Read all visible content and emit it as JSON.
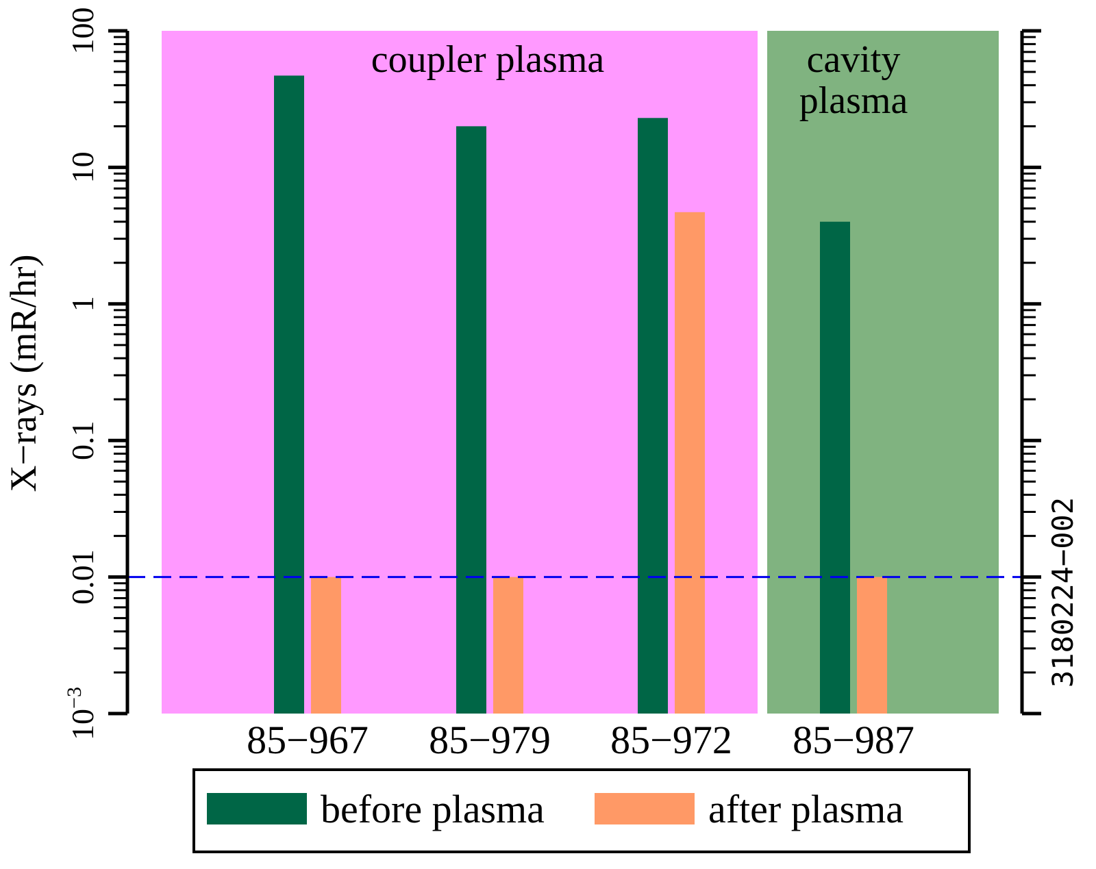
{
  "chart_data": {
    "type": "bar",
    "ylabel": "X−rays (mR/hr)",
    "yscale": "log",
    "ylim": [
      0.001,
      100
    ],
    "yticks": [
      {
        "value": 100,
        "label": "100"
      },
      {
        "value": 10,
        "label": "10"
      },
      {
        "value": 1,
        "label": "1"
      },
      {
        "value": 0.1,
        "label": "0.1"
      },
      {
        "value": 0.01,
        "label": "0.01"
      },
      {
        "value": 0.001,
        "label": "10",
        "exp": "−3"
      }
    ],
    "categories": [
      "85−967",
      "85−979",
      "85−972",
      "85−987"
    ],
    "series": [
      {
        "name": "before plasma",
        "color": "#006646",
        "values": [
          47,
          20,
          23,
          4
        ]
      },
      {
        "name": "after plasma",
        "color": "#ff9966",
        "values": [
          0.01,
          0.01,
          4.7,
          0.01
        ]
      }
    ],
    "regions": [
      {
        "label_lines": [
          "coupler plasma"
        ],
        "color": "#ff99ff",
        "categories": [
          0,
          1,
          2
        ]
      },
      {
        "label_lines": [
          "cavity",
          "plasma"
        ],
        "color": "#80b380",
        "categories": [
          3
        ]
      }
    ],
    "reference_line": {
      "value": 0.01,
      "color": "#0000ee",
      "style": "dashed"
    },
    "side_label": "3180224−002",
    "legend": {
      "placement": "bottom-center"
    }
  }
}
